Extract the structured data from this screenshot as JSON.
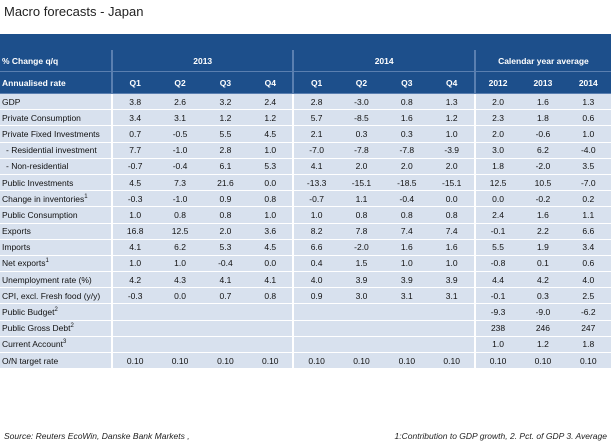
{
  "title": "Macro forecasts - Japan",
  "table": {
    "header": {
      "label1": "% Change q/q",
      "label2": "Annualised rate",
      "groups": [
        "2013",
        "2014",
        "Calendar year average"
      ],
      "columns": [
        "Q1",
        "Q2",
        "Q3",
        "Q4",
        "Q1",
        "Q2",
        "Q3",
        "Q4",
        "2012",
        "2013",
        "2014"
      ]
    },
    "rows": [
      {
        "label": "GDP",
        "values": [
          "3.8",
          "2.6",
          "3.2",
          "2.4",
          "2.8",
          "-3.0",
          "0.8",
          "1.3",
          "2.0",
          "1.6",
          "1.3"
        ]
      },
      {
        "label": "Private Consumption",
        "values": [
          "3.4",
          "3.1",
          "1.2",
          "1.2",
          "5.7",
          "-8.5",
          "1.6",
          "1.2",
          "2.3",
          "1.8",
          "0.6"
        ]
      },
      {
        "label": "Private Fixed Investments",
        "values": [
          "0.7",
          "-0.5",
          "5.5",
          "4.5",
          "2.1",
          "0.3",
          "0.3",
          "1.0",
          "2.0",
          "-0.6",
          "1.0"
        ]
      },
      {
        "label": "- Residential investment",
        "values": [
          "7.7",
          "-1.0",
          "2.8",
          "1.0",
          "-7.0",
          "-7.8",
          "-7.8",
          "-3.9",
          "3.0",
          "6.2",
          "-4.0"
        ]
      },
      {
        "label": "- Non-residential",
        "values": [
          "-0.7",
          "-0.4",
          "6.1",
          "5.3",
          "4.1",
          "2.0",
          "2.0",
          "2.0",
          "1.8",
          "-2.0",
          "3.5"
        ]
      },
      {
        "label": "Public Investments",
        "values": [
          "4.5",
          "7.3",
          "21.6",
          "0.0",
          "-13.3",
          "-15.1",
          "-18.5",
          "-15.1",
          "12.5",
          "10.5",
          "-7.0"
        ]
      },
      {
        "label": "Change in inventories",
        "note": "1",
        "values": [
          "-0.3",
          "-1.0",
          "0.9",
          "0.8",
          "-0.7",
          "1.1",
          "-0.4",
          "0.0",
          "0.0",
          "-0.2",
          "0.2"
        ]
      },
      {
        "label": "Public Consumption",
        "values": [
          "1.0",
          "0.8",
          "0.8",
          "1.0",
          "1.0",
          "0.8",
          "0.8",
          "0.8",
          "2.4",
          "1.6",
          "1.1"
        ]
      },
      {
        "label": "Exports",
        "values": [
          "16.8",
          "12.5",
          "2.0",
          "3.6",
          "8.2",
          "7.8",
          "7.4",
          "7.4",
          "-0.1",
          "2.2",
          "6.6"
        ]
      },
      {
        "label": "Imports",
        "values": [
          "4.1",
          "6.2",
          "5.3",
          "4.5",
          "6.6",
          "-2.0",
          "1.6",
          "1.6",
          "5.5",
          "1.9",
          "3.4"
        ]
      },
      {
        "label": "Net exports",
        "note": "1",
        "values": [
          "1.0",
          "1.0",
          "-0.4",
          "0.0",
          "0.4",
          "1.5",
          "1.0",
          "1.0",
          "-0.8",
          "0.1",
          "0.6"
        ]
      },
      {
        "label": "Unemployment rate (%)",
        "values": [
          "4.2",
          "4.3",
          "4.1",
          "4.1",
          "4.0",
          "3.9",
          "3.9",
          "3.9",
          "4.4",
          "4.2",
          "4.0"
        ]
      },
      {
        "label": "CPI, excl. Fresh food (y/y)",
        "values": [
          "-0.3",
          "0.0",
          "0.7",
          "0.8",
          "0.9",
          "3.0",
          "3.1",
          "3.1",
          "-0.1",
          "0.3",
          "2.5"
        ]
      },
      {
        "label": "Public Budget",
        "note": "2",
        "values": [
          null,
          null,
          null,
          null,
          null,
          null,
          null,
          null,
          "-9.3",
          "-9.0",
          "-6.2"
        ]
      },
      {
        "label": "Public Gross Debt",
        "note": "2",
        "values": [
          null,
          null,
          null,
          null,
          null,
          null,
          null,
          null,
          "238",
          "246",
          "247"
        ]
      },
      {
        "label": "Current Account",
        "note": "3",
        "values": [
          null,
          null,
          null,
          null,
          null,
          null,
          null,
          null,
          "1.0",
          "1.2",
          "1.8"
        ]
      },
      {
        "label": "O/N target rate",
        "values": [
          "0.10",
          "0.10",
          "0.10",
          "0.10",
          "0.10",
          "0.10",
          "0.10",
          "0.10",
          "0.10",
          "0.10",
          "0.10"
        ]
      }
    ]
  },
  "footer": {
    "source": "Source: Reuters EcoWin, Danske Bank Markets ,",
    "notes": "1:Contribution to GDP growth, 2. Pct. of GDP 3. Average"
  }
}
